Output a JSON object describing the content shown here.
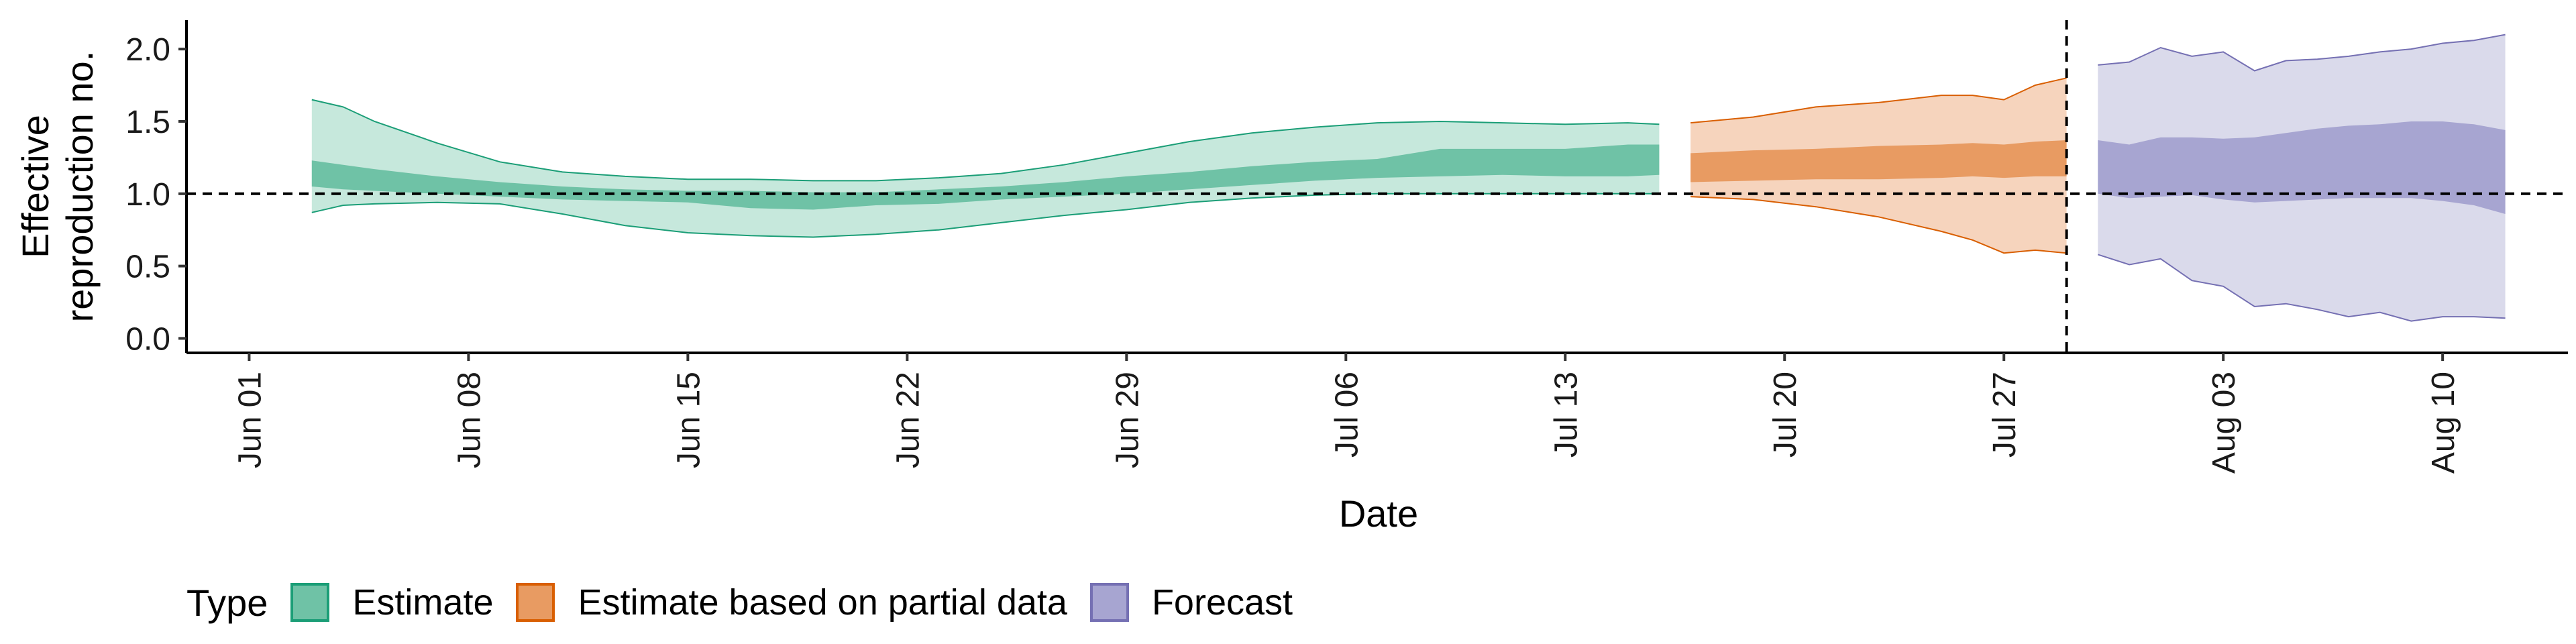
{
  "chart_data": {
    "type": "area",
    "xlabel": "Date",
    "ylabel_lines": [
      "Effective",
      "reproduction no."
    ],
    "x_ticks": [
      "Jun 01",
      "Jun 08",
      "Jun 15",
      "Jun 22",
      "Jun 29",
      "Jul 06",
      "Jul 13",
      "Jul 20",
      "Jul 27",
      "Aug 03",
      "Aug 10"
    ],
    "y_ticks": [
      "0.0",
      "0.5",
      "1.0",
      "1.5",
      "2.0"
    ],
    "ylim": [
      -0.1,
      2.2
    ],
    "xlim": [
      "2020-05-30",
      "2020-08-14"
    ],
    "reference_line_y": 1.0,
    "reference_line_x": "2020-07-29",
    "legend": {
      "title": "Type",
      "position": "bottom",
      "entries": [
        {
          "label": "Estimate",
          "fill": "#6fc2a6",
          "border": "#1b9e77"
        },
        {
          "label": "Estimate based on partial data",
          "fill": "#e89b62",
          "border": "#d95f02"
        },
        {
          "label": "Forecast",
          "fill": "#a7a5d1",
          "border": "#7570b3"
        }
      ]
    },
    "series": [
      {
        "name": "Estimate",
        "color_outer": "#c6e8dc",
        "color_inner": "#6fc2a6",
        "line": "#1b9e77",
        "x": [
          "2020-06-03",
          "2020-06-04",
          "2020-06-05",
          "2020-06-07",
          "2020-06-09",
          "2020-06-11",
          "2020-06-13",
          "2020-06-15",
          "2020-06-17",
          "2020-06-19",
          "2020-06-21",
          "2020-06-23",
          "2020-06-25",
          "2020-06-27",
          "2020-06-29",
          "2020-07-01",
          "2020-07-03",
          "2020-07-05",
          "2020-07-07",
          "2020-07-09",
          "2020-07-11",
          "2020-07-13",
          "2020-07-15",
          "2020-07-16"
        ],
        "upper90": [
          1.65,
          1.6,
          1.5,
          1.35,
          1.22,
          1.15,
          1.12,
          1.1,
          1.1,
          1.09,
          1.09,
          1.11,
          1.14,
          1.2,
          1.28,
          1.36,
          1.42,
          1.46,
          1.49,
          1.5,
          1.49,
          1.48,
          1.49,
          1.48
        ],
        "upper50": [
          1.23,
          1.2,
          1.17,
          1.12,
          1.08,
          1.05,
          1.03,
          1.02,
          1.02,
          1.01,
          1.01,
          1.03,
          1.05,
          1.08,
          1.12,
          1.15,
          1.19,
          1.22,
          1.24,
          1.31,
          1.31,
          1.31,
          1.34,
          1.34
        ],
        "lower50": [
          1.05,
          1.03,
          1.02,
          1.0,
          0.98,
          0.96,
          0.95,
          0.94,
          0.9,
          0.89,
          0.92,
          0.93,
          0.96,
          0.98,
          1.0,
          1.03,
          1.06,
          1.09,
          1.11,
          1.12,
          1.13,
          1.12,
          1.12,
          1.13
        ],
        "lower90": [
          0.87,
          0.92,
          0.93,
          0.94,
          0.93,
          0.86,
          0.78,
          0.73,
          0.71,
          0.7,
          0.72,
          0.75,
          0.8,
          0.85,
          0.89,
          0.94,
          0.97,
          0.99,
          1.0,
          1.0,
          1.0,
          1.0,
          1.0,
          1.0
        ]
      },
      {
        "name": "Estimate based on partial data",
        "color_outer": "#f6d4bd",
        "color_inner": "#e89b62",
        "line": "#d95f02",
        "x": [
          "2020-07-17",
          "2020-07-19",
          "2020-07-21",
          "2020-07-23",
          "2020-07-25",
          "2020-07-26",
          "2020-07-27",
          "2020-07-28",
          "2020-07-29"
        ],
        "upper90": [
          1.49,
          1.53,
          1.6,
          1.63,
          1.68,
          1.68,
          1.65,
          1.75,
          1.8
        ],
        "upper50": [
          1.28,
          1.3,
          1.31,
          1.33,
          1.34,
          1.35,
          1.34,
          1.36,
          1.37
        ],
        "lower50": [
          1.08,
          1.09,
          1.1,
          1.1,
          1.11,
          1.12,
          1.11,
          1.12,
          1.12
        ],
        "lower90": [
          0.98,
          0.96,
          0.91,
          0.84,
          0.74,
          0.68,
          0.59,
          0.61,
          0.59
        ]
      },
      {
        "name": "Forecast",
        "color_outer": "#dadaeb",
        "color_inner": "#a7a5d1",
        "line": "#7570b3",
        "x": [
          "2020-07-30",
          "2020-07-31",
          "2020-08-01",
          "2020-08-02",
          "2020-08-03",
          "2020-08-04",
          "2020-08-05",
          "2020-08-06",
          "2020-08-07",
          "2020-08-08",
          "2020-08-09",
          "2020-08-10",
          "2020-08-11",
          "2020-08-12"
        ],
        "upper90": [
          1.89,
          1.91,
          2.01,
          1.95,
          1.98,
          1.85,
          1.92,
          1.93,
          1.95,
          1.98,
          2.0,
          2.04,
          2.06,
          2.1
        ],
        "upper50": [
          1.37,
          1.34,
          1.39,
          1.39,
          1.38,
          1.39,
          1.42,
          1.45,
          1.47,
          1.48,
          1.5,
          1.5,
          1.48,
          1.44
        ],
        "lower50": [
          1.0,
          0.97,
          0.98,
          0.99,
          0.96,
          0.94,
          0.95,
          0.96,
          0.97,
          0.97,
          0.97,
          0.95,
          0.92,
          0.86
        ],
        "lower90": [
          0.58,
          0.51,
          0.55,
          0.4,
          0.36,
          0.22,
          0.24,
          0.2,
          0.15,
          0.18,
          0.12,
          0.15,
          0.15,
          0.14
        ]
      }
    ]
  }
}
